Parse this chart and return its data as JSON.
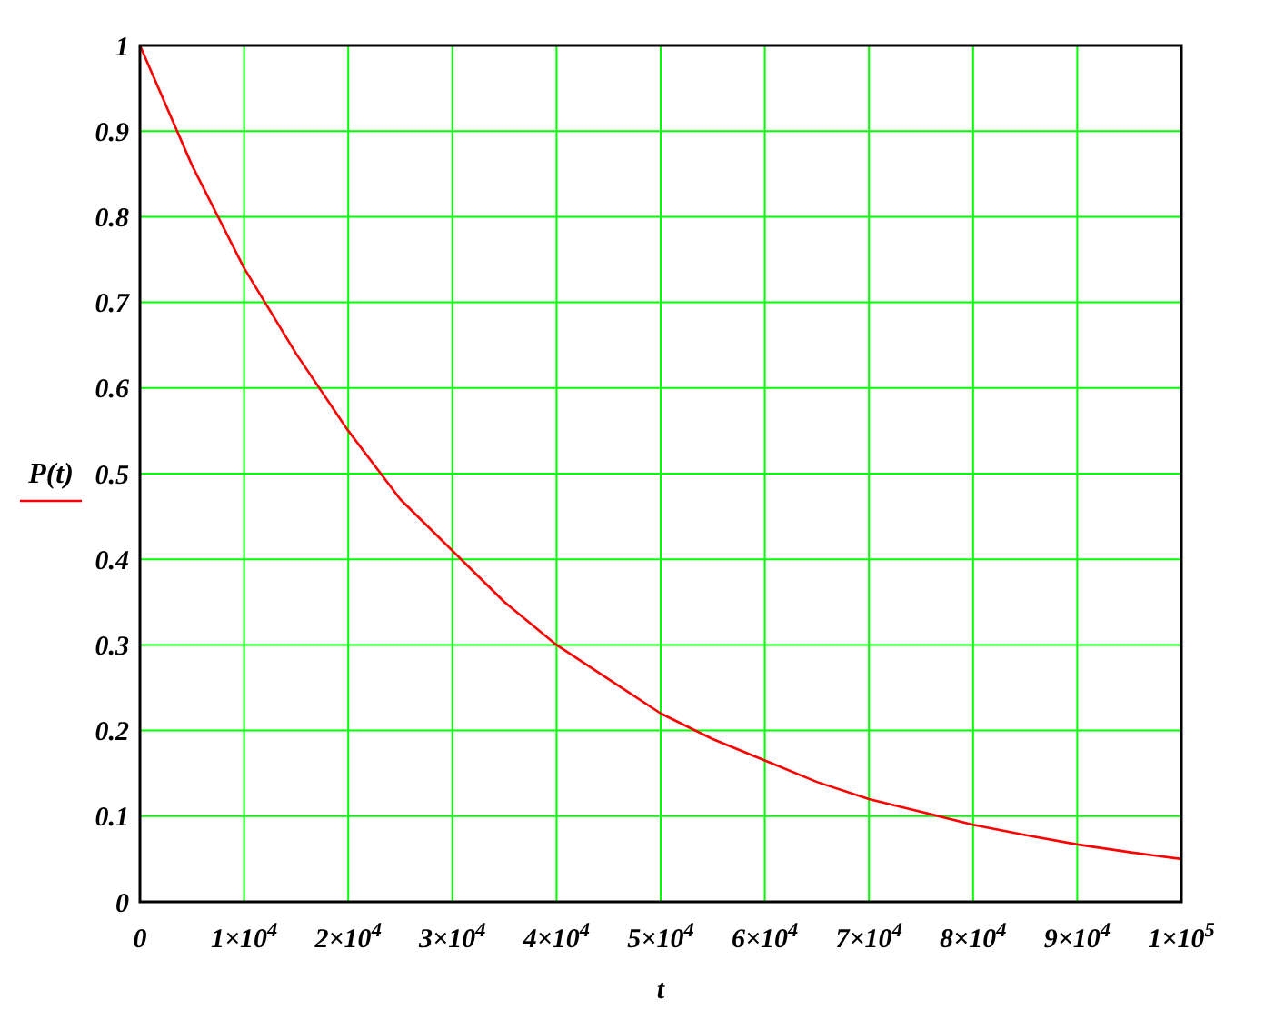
{
  "chart_data": {
    "type": "line",
    "xlabel": "t",
    "ylabel": "P(t)",
    "x": [
      0,
      5000,
      10000,
      15000,
      20000,
      25000,
      30000,
      35000,
      40000,
      45000,
      50000,
      55000,
      60000,
      65000,
      70000,
      75000,
      80000,
      85000,
      90000,
      95000,
      100000
    ],
    "series": [
      {
        "color": "#ff0000",
        "values": [
          1,
          0.86,
          0.74,
          0.64,
          0.55,
          0.47,
          0.41,
          0.35,
          0.3,
          0.26,
          0.22,
          0.19,
          0.165,
          0.14,
          0.12,
          0.105,
          0.09,
          0.078,
          0.067,
          0.058,
          0.05
        ]
      }
    ],
    "xlim": [
      0,
      100000
    ],
    "ylim": [
      0,
      1
    ],
    "xticks": [
      0,
      {
        "value": 10000,
        "label": "1×10$^{4}$"
      },
      {
        "value": 20000,
        "label": "2×10$^{4}$"
      },
      {
        "value": 30000,
        "label": "3×10$^{4}$"
      },
      {
        "value": 40000,
        "label": "4×10$^{4}$"
      },
      {
        "value": 50000,
        "label": "5×10$^{4}$"
      },
      {
        "value": 60000,
        "label": "6×10$^{4}$"
      },
      {
        "value": 70000,
        "label": "7×10$^{4}$"
      },
      {
        "value": 80000,
        "label": "8×10$^{4}$"
      },
      {
        "value": 90000,
        "label": "9×10$^{4}$"
      },
      {
        "value": 100000,
        "label": "1×10$^{5}$"
      }
    ],
    "yticks": [
      0,
      0.1,
      0.2,
      0.3,
      0.4,
      0.5,
      0.6,
      0.7,
      0.8,
      0.9,
      1
    ],
    "grid": true,
    "marker": "none",
    "line_style": "solid"
  }
}
